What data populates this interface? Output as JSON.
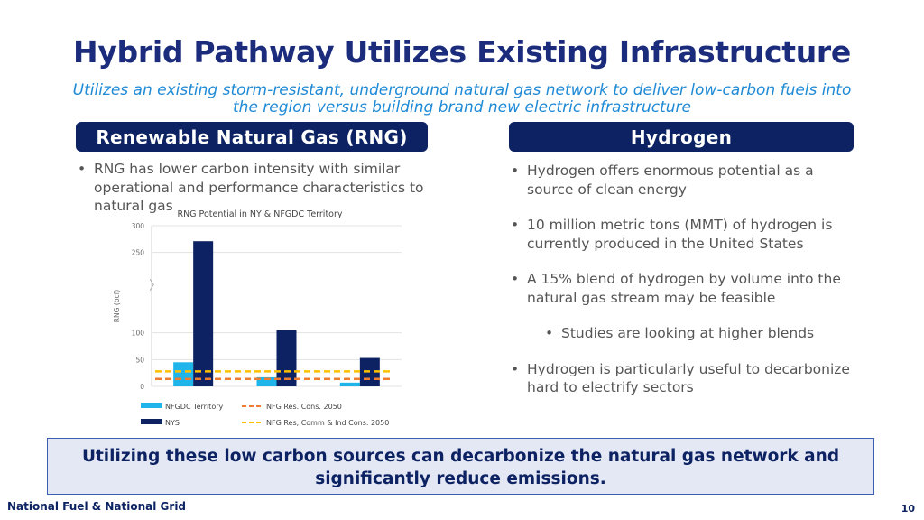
{
  "slide": {
    "title": "Hybrid Pathway Utilizes Existing Infrastructure",
    "subtitle": "Utilizes an existing storm-resistant, underground natural gas network to deliver low-carbon fuels into the region versus building brand new electric infrastructure",
    "footer_left": "National Fuel & National Grid",
    "page_number": "10",
    "banner": "Utilizing these low carbon sources can decarbonize the natural gas network and significantly reduce emissions."
  },
  "left": {
    "header": "Renewable Natural Gas (RNG)",
    "bullets": [
      "RNG has lower carbon intensity with similar operational and performance characteristics to natural gas"
    ]
  },
  "right": {
    "header": "Hydrogen",
    "bullets": [
      "Hydrogen offers enormous potential as a source of clean energy",
      "10 million metric tons (MMT) of hydrogen is currently produced in the United States",
      "A 15% blend of hydrogen by volume into the natural gas stream may be feasible",
      "Studies are looking at higher blends",
      "Hydrogen is particularly useful to decarbonize hard to electrify sectors"
    ]
  },
  "colors": {
    "navy": "#0c2262",
    "title_blue": "#1c2c7c",
    "accent_blue": "#1f8ad6",
    "nfgdc_bar": "#1fb5ea",
    "nys_bar": "#0c2262",
    "res_line": "#ee7d31",
    "all_line": "#ffc000"
  },
  "chart_data": {
    "type": "bar",
    "title": "RNG Potential in NY & NFGDC Territory",
    "ylabel": "RNG (bcf)",
    "xlabel": "",
    "ylim": [
      0,
      300
    ],
    "yticks": [
      0,
      50,
      100,
      250,
      300
    ],
    "categories": [
      "",
      "",
      ""
    ],
    "series": [
      {
        "name": "NFGDC Territory",
        "values": [
          45,
          17,
          7
        ]
      },
      {
        "name": "NYS",
        "values": [
          271,
          105,
          53
        ]
      }
    ],
    "reference_lines": [
      {
        "name": "NFG Res. Cons. 2050",
        "value": 14
      },
      {
        "name": "NFG Res, Comm & Ind Cons. 2050",
        "value": 28
      }
    ],
    "grid": true,
    "legend": "bottom"
  }
}
